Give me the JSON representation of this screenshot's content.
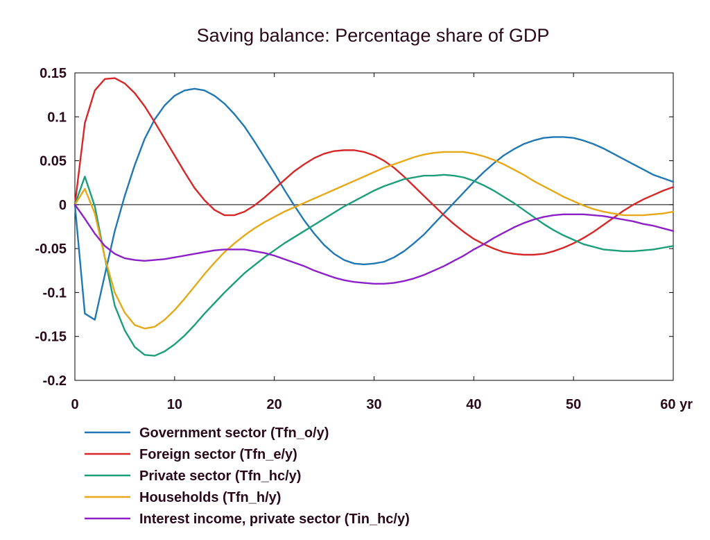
{
  "chart_data": {
    "type": "line",
    "title": "Saving balance: Percentage share of GDP",
    "xlabel": "",
    "ylabel": "",
    "x_unit_label": "yr",
    "xlim": [
      0,
      60
    ],
    "ylim": [
      -0.2,
      0.15
    ],
    "x_ticks": [
      0,
      10,
      20,
      30,
      40,
      50,
      60
    ],
    "x_tick_labels": [
      "0",
      "10",
      "20",
      "30",
      "40",
      "50",
      "60 yr"
    ],
    "y_ticks": [
      0.15,
      0.1,
      0.05,
      0,
      -0.05,
      -0.1,
      -0.15,
      -0.2
    ],
    "y_tick_labels": [
      "0.15",
      "0.1",
      "0.05",
      "0",
      "-0.05",
      "-0.1",
      "-0.15",
      "-0.2"
    ],
    "grid": false,
    "zero_line": true,
    "legend_position": "bottom-left",
    "series": [
      {
        "name": "Government sector (Tfn_o/y)",
        "color": "#1f77b4",
        "points": [
          [
            0,
            0
          ],
          [
            1,
            -0.124
          ],
          [
            2,
            -0.131
          ],
          [
            3,
            -0.08
          ],
          [
            4,
            -0.03
          ],
          [
            5,
            0.01
          ],
          [
            6,
            0.045
          ],
          [
            7,
            0.075
          ],
          [
            8,
            0.097
          ],
          [
            9,
            0.113
          ],
          [
            10,
            0.124
          ],
          [
            11,
            0.13
          ],
          [
            12,
            0.132
          ],
          [
            13,
            0.13
          ],
          [
            14,
            0.124
          ],
          [
            15,
            0.115
          ],
          [
            16,
            0.103
          ],
          [
            17,
            0.089
          ],
          [
            18,
            0.072
          ],
          [
            19,
            0.054
          ],
          [
            20,
            0.036
          ],
          [
            21,
            0.017
          ],
          [
            22,
            -0.001
          ],
          [
            23,
            -0.018
          ],
          [
            24,
            -0.033
          ],
          [
            25,
            -0.046
          ],
          [
            26,
            -0.056
          ],
          [
            27,
            -0.063
          ],
          [
            28,
            -0.067
          ],
          [
            29,
            -0.068
          ],
          [
            30,
            -0.067
          ],
          [
            31,
            -0.065
          ],
          [
            32,
            -0.06
          ],
          [
            33,
            -0.053
          ],
          [
            34,
            -0.044
          ],
          [
            35,
            -0.034
          ],
          [
            36,
            -0.022
          ],
          [
            37,
            -0.01
          ],
          [
            38,
            0.002
          ],
          [
            39,
            0.014
          ],
          [
            40,
            0.026
          ],
          [
            41,
            0.037
          ],
          [
            42,
            0.047
          ],
          [
            43,
            0.056
          ],
          [
            44,
            0.063
          ],
          [
            45,
            0.069
          ],
          [
            46,
            0.073
          ],
          [
            47,
            0.076
          ],
          [
            48,
            0.077
          ],
          [
            49,
            0.077
          ],
          [
            50,
            0.076
          ],
          [
            51,
            0.073
          ],
          [
            52,
            0.069
          ],
          [
            53,
            0.064
          ],
          [
            54,
            0.058
          ],
          [
            55,
            0.052
          ],
          [
            56,
            0.046
          ],
          [
            57,
            0.04
          ],
          [
            58,
            0.034
          ],
          [
            59,
            0.03
          ],
          [
            60,
            0.026
          ]
        ]
      },
      {
        "name": "Foreign sector (Tfn_e/y)",
        "color": "#d62728",
        "points": [
          [
            0,
            0
          ],
          [
            1,
            0.093
          ],
          [
            2,
            0.13
          ],
          [
            3,
            0.143
          ],
          [
            4,
            0.144
          ],
          [
            5,
            0.138
          ],
          [
            6,
            0.127
          ],
          [
            7,
            0.112
          ],
          [
            8,
            0.094
          ],
          [
            9,
            0.075
          ],
          [
            10,
            0.056
          ],
          [
            11,
            0.037
          ],
          [
            12,
            0.019
          ],
          [
            13,
            0.005
          ],
          [
            14,
            -0.006
          ],
          [
            15,
            -0.012
          ],
          [
            16,
            -0.012
          ],
          [
            17,
            -0.008
          ],
          [
            18,
            -0.001
          ],
          [
            19,
            0.008
          ],
          [
            20,
            0.018
          ],
          [
            21,
            0.028
          ],
          [
            22,
            0.038
          ],
          [
            23,
            0.046
          ],
          [
            24,
            0.053
          ],
          [
            25,
            0.058
          ],
          [
            26,
            0.061
          ],
          [
            27,
            0.062
          ],
          [
            28,
            0.062
          ],
          [
            29,
            0.06
          ],
          [
            30,
            0.056
          ],
          [
            31,
            0.05
          ],
          [
            32,
            0.042
          ],
          [
            33,
            0.032
          ],
          [
            34,
            0.021
          ],
          [
            35,
            0.01
          ],
          [
            36,
            -0.001
          ],
          [
            37,
            -0.012
          ],
          [
            38,
            -0.022
          ],
          [
            39,
            -0.031
          ],
          [
            40,
            -0.039
          ],
          [
            41,
            -0.045
          ],
          [
            42,
            -0.05
          ],
          [
            43,
            -0.054
          ],
          [
            44,
            -0.056
          ],
          [
            45,
            -0.057
          ],
          [
            46,
            -0.057
          ],
          [
            47,
            -0.056
          ],
          [
            48,
            -0.053
          ],
          [
            49,
            -0.049
          ],
          [
            50,
            -0.044
          ],
          [
            51,
            -0.038
          ],
          [
            52,
            -0.031
          ],
          [
            53,
            -0.023
          ],
          [
            54,
            -0.015
          ],
          [
            55,
            -0.007
          ],
          [
            56,
            0
          ],
          [
            57,
            0.006
          ],
          [
            58,
            0.011
          ],
          [
            59,
            0.016
          ],
          [
            60,
            0.02
          ]
        ]
      },
      {
        "name": "Private sector (Tfn_hc/y)",
        "color": "#1a9e7a",
        "points": [
          [
            0,
            0
          ],
          [
            1,
            0.032
          ],
          [
            2,
            -0.002
          ],
          [
            3,
            -0.06
          ],
          [
            4,
            -0.115
          ],
          [
            5,
            -0.143
          ],
          [
            6,
            -0.162
          ],
          [
            7,
            -0.171
          ],
          [
            8,
            -0.172
          ],
          [
            9,
            -0.167
          ],
          [
            10,
            -0.159
          ],
          [
            11,
            -0.149
          ],
          [
            12,
            -0.137
          ],
          [
            13,
            -0.124
          ],
          [
            14,
            -0.112
          ],
          [
            15,
            -0.1
          ],
          [
            16,
            -0.089
          ],
          [
            17,
            -0.078
          ],
          [
            18,
            -0.069
          ],
          [
            19,
            -0.06
          ],
          [
            20,
            -0.052
          ],
          [
            21,
            -0.044
          ],
          [
            22,
            -0.037
          ],
          [
            23,
            -0.03
          ],
          [
            24,
            -0.023
          ],
          [
            25,
            -0.016
          ],
          [
            26,
            -0.009
          ],
          [
            27,
            -0.002
          ],
          [
            28,
            0.004
          ],
          [
            29,
            0.01
          ],
          [
            30,
            0.016
          ],
          [
            31,
            0.021
          ],
          [
            32,
            0.025
          ],
          [
            33,
            0.029
          ],
          [
            34,
            0.031
          ],
          [
            35,
            0.033
          ],
          [
            36,
            0.033
          ],
          [
            37,
            0.034
          ],
          [
            38,
            0.033
          ],
          [
            39,
            0.031
          ],
          [
            40,
            0.027
          ],
          [
            41,
            0.022
          ],
          [
            42,
            0.016
          ],
          [
            43,
            0.009
          ],
          [
            44,
            0.002
          ],
          [
            45,
            -0.006
          ],
          [
            46,
            -0.014
          ],
          [
            47,
            -0.022
          ],
          [
            48,
            -0.029
          ],
          [
            49,
            -0.035
          ],
          [
            50,
            -0.04
          ],
          [
            51,
            -0.045
          ],
          [
            52,
            -0.048
          ],
          [
            53,
            -0.051
          ],
          [
            54,
            -0.052
          ],
          [
            55,
            -0.053
          ],
          [
            56,
            -0.053
          ],
          [
            57,
            -0.052
          ],
          [
            58,
            -0.051
          ],
          [
            59,
            -0.049
          ],
          [
            60,
            -0.047
          ]
        ]
      },
      {
        "name": "Households (Tfn_h/y)",
        "color": "#e6a817",
        "points": [
          [
            0,
            0
          ],
          [
            1,
            0.018
          ],
          [
            2,
            -0.01
          ],
          [
            3,
            -0.06
          ],
          [
            4,
            -0.1
          ],
          [
            5,
            -0.123
          ],
          [
            6,
            -0.137
          ],
          [
            7,
            -0.141
          ],
          [
            8,
            -0.139
          ],
          [
            9,
            -0.131
          ],
          [
            10,
            -0.12
          ],
          [
            11,
            -0.107
          ],
          [
            12,
            -0.093
          ],
          [
            13,
            -0.079
          ],
          [
            14,
            -0.066
          ],
          [
            15,
            -0.054
          ],
          [
            16,
            -0.044
          ],
          [
            17,
            -0.035
          ],
          [
            18,
            -0.027
          ],
          [
            19,
            -0.02
          ],
          [
            20,
            -0.014
          ],
          [
            21,
            -0.008
          ],
          [
            22,
            -0.003
          ],
          [
            23,
            0.002
          ],
          [
            24,
            0.007
          ],
          [
            25,
            0.012
          ],
          [
            26,
            0.017
          ],
          [
            27,
            0.022
          ],
          [
            28,
            0.027
          ],
          [
            29,
            0.032
          ],
          [
            30,
            0.037
          ],
          [
            31,
            0.042
          ],
          [
            32,
            0.046
          ],
          [
            33,
            0.05
          ],
          [
            34,
            0.054
          ],
          [
            35,
            0.057
          ],
          [
            36,
            0.059
          ],
          [
            37,
            0.06
          ],
          [
            38,
            0.06
          ],
          [
            39,
            0.06
          ],
          [
            40,
            0.058
          ],
          [
            41,
            0.055
          ],
          [
            42,
            0.051
          ],
          [
            43,
            0.046
          ],
          [
            44,
            0.04
          ],
          [
            45,
            0.034
          ],
          [
            46,
            0.027
          ],
          [
            47,
            0.021
          ],
          [
            48,
            0.015
          ],
          [
            49,
            0.009
          ],
          [
            50,
            0.004
          ],
          [
            51,
            -0.001
          ],
          [
            52,
            -0.005
          ],
          [
            53,
            -0.008
          ],
          [
            54,
            -0.01
          ],
          [
            55,
            -0.012
          ],
          [
            56,
            -0.012
          ],
          [
            57,
            -0.012
          ],
          [
            58,
            -0.011
          ],
          [
            59,
            -0.01
          ],
          [
            60,
            -0.008
          ]
        ]
      },
      {
        "name": "Interest income, private sector (Tin_hc/y)",
        "color": "#8c1fc7",
        "points": [
          [
            0,
            0
          ],
          [
            1,
            -0.016
          ],
          [
            2,
            -0.033
          ],
          [
            3,
            -0.047
          ],
          [
            4,
            -0.056
          ],
          [
            5,
            -0.061
          ],
          [
            6,
            -0.063
          ],
          [
            7,
            -0.064
          ],
          [
            8,
            -0.063
          ],
          [
            9,
            -0.062
          ],
          [
            10,
            -0.06
          ],
          [
            11,
            -0.058
          ],
          [
            12,
            -0.056
          ],
          [
            13,
            -0.054
          ],
          [
            14,
            -0.052
          ],
          [
            15,
            -0.051
          ],
          [
            16,
            -0.051
          ],
          [
            17,
            -0.051
          ],
          [
            18,
            -0.053
          ],
          [
            19,
            -0.055
          ],
          [
            20,
            -0.058
          ],
          [
            21,
            -0.062
          ],
          [
            22,
            -0.066
          ],
          [
            23,
            -0.07
          ],
          [
            24,
            -0.075
          ],
          [
            25,
            -0.079
          ],
          [
            26,
            -0.083
          ],
          [
            27,
            -0.086
          ],
          [
            28,
            -0.088
          ],
          [
            29,
            -0.089
          ],
          [
            30,
            -0.09
          ],
          [
            31,
            -0.09
          ],
          [
            32,
            -0.089
          ],
          [
            33,
            -0.087
          ],
          [
            34,
            -0.084
          ],
          [
            35,
            -0.08
          ],
          [
            36,
            -0.075
          ],
          [
            37,
            -0.07
          ],
          [
            38,
            -0.064
          ],
          [
            39,
            -0.058
          ],
          [
            40,
            -0.051
          ],
          [
            41,
            -0.045
          ],
          [
            42,
            -0.038
          ],
          [
            43,
            -0.032
          ],
          [
            44,
            -0.026
          ],
          [
            45,
            -0.021
          ],
          [
            46,
            -0.017
          ],
          [
            47,
            -0.014
          ],
          [
            48,
            -0.012
          ],
          [
            49,
            -0.011
          ],
          [
            50,
            -0.011
          ],
          [
            51,
            -0.011
          ],
          [
            52,
            -0.012
          ],
          [
            53,
            -0.013
          ],
          [
            54,
            -0.015
          ],
          [
            55,
            -0.017
          ],
          [
            56,
            -0.019
          ],
          [
            57,
            -0.022
          ],
          [
            58,
            -0.024
          ],
          [
            59,
            -0.027
          ],
          [
            60,
            -0.03
          ]
        ]
      }
    ]
  }
}
